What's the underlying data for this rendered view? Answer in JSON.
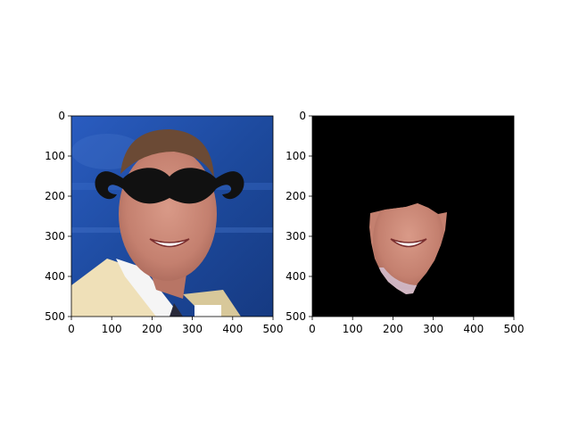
{
  "chart_data": [
    {
      "type": "image",
      "title": "",
      "xlabel": "",
      "ylabel": "",
      "xlim": [
        0,
        500
      ],
      "ylim": [
        500,
        0
      ],
      "xticks": [
        0,
        100,
        200,
        300,
        400,
        500
      ],
      "yticks": [
        0,
        100,
        200,
        300,
        400,
        500
      ],
      "grid": false,
      "content": "face photo on blue background with black mustache overlay"
    },
    {
      "type": "image",
      "title": "",
      "xlabel": "",
      "ylabel": "",
      "xlim": [
        0,
        500
      ],
      "ylim": [
        500,
        0
      ],
      "xticks": [
        0,
        100,
        200,
        300,
        400,
        500
      ],
      "yticks": [
        0,
        100,
        200,
        300,
        400,
        500
      ],
      "grid": false,
      "content": "segmented face region on black background"
    }
  ],
  "colors": {
    "photo_background": "#1f4aa0",
    "skin": "#c98a7a",
    "hair": "#6b4a35",
    "jacket": "#efe0b8",
    "shirt": "#f2f2f2",
    "mustache": "#111111",
    "mask_background": "#000000"
  }
}
